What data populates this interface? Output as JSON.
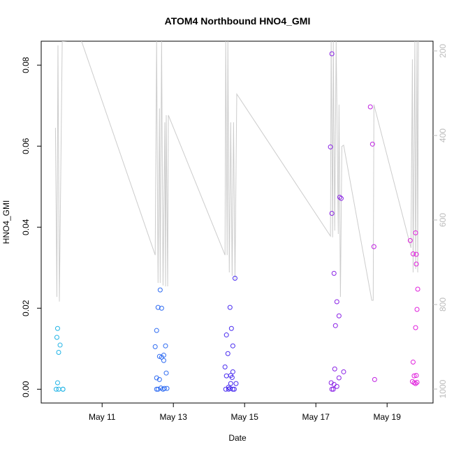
{
  "chart_data": {
    "type": "scatter",
    "title": "ATOM4 Northbound HNO4_GMI",
    "xlabel": "Date",
    "ylabel": "HNO4_GMI",
    "xlim": [
      9.29,
      20.29
    ],
    "xticks": [
      {
        "value": 11,
        "label": "May 11"
      },
      {
        "value": 13,
        "label": "May 13"
      },
      {
        "value": 15,
        "label": "May 15"
      },
      {
        "value": 17,
        "label": "May 17"
      },
      {
        "value": 19,
        "label": "May 19"
      }
    ],
    "ylim": [
      -0.0034,
      0.0859
    ],
    "yticks": [
      {
        "value": 0,
        "label": "0.00"
      },
      {
        "value": 0.02,
        "label": "0.02"
      },
      {
        "value": 0.04,
        "label": "0.04"
      },
      {
        "value": 0.06,
        "label": "0.06"
      },
      {
        "value": 0.08,
        "label": "0.08"
      }
    ],
    "y2lim": [
      1033,
      177
    ],
    "y2ticks": [
      200,
      400,
      600,
      800,
      1000
    ],
    "y2_color": "#bbbbbb",
    "series": [
      {
        "type": "scatter",
        "color": "#22b4e6",
        "x": [
          9.75,
          9.73,
          9.82,
          9.78,
          9.75,
          9.71,
          9.78,
          9.9,
          9.9
        ],
        "values": [
          0.015,
          0.0128,
          0.0109,
          0.0091,
          0.0016,
          0,
          0,
          0,
          0
        ]
      },
      {
        "type": "scatter",
        "color": "#2f6cf2",
        "x": [
          12.63,
          12.57,
          12.67,
          12.53,
          12.49,
          12.78,
          12.61,
          12.67,
          12.73,
          12.73,
          12.8,
          12.53,
          12.61,
          12.53,
          12.57,
          12.65,
          12.75,
          12.82,
          12.71
        ],
        "values": [
          0.0245,
          0.0202,
          0.02,
          0.0145,
          0.0105,
          0.0107,
          0.0081,
          0.0079,
          0.0084,
          0.0071,
          0.004,
          0.0028,
          0.0024,
          0,
          0,
          0.0003,
          0.0002,
          0.0002,
          0
        ]
      },
      {
        "type": "scatter",
        "color": "#4a2df0",
        "x": [
          14.73,
          14.59,
          14.63,
          14.49,
          14.67,
          14.53,
          14.45,
          14.67,
          14.49,
          14.61,
          14.65,
          14.76,
          14.61,
          14.55,
          14.47,
          14.55,
          14.67,
          14.71,
          14.59
        ],
        "values": [
          0.0274,
          0.0202,
          0.015,
          0.0134,
          0.0107,
          0.0088,
          0.0055,
          0.0043,
          0.0033,
          0.0034,
          0.0029,
          0.0014,
          0.0014,
          0.0005,
          0,
          0,
          0,
          0,
          0.0002
        ]
      },
      {
        "type": "scatter",
        "color": "#8a22e6",
        "x": [
          17.45,
          17.41,
          17.45,
          17.67,
          17.71,
          17.51,
          17.59,
          17.65,
          17.55,
          17.53,
          17.78,
          17.65,
          17.43,
          17.51,
          17.59,
          17.45,
          17.49
        ],
        "values": [
          0.0828,
          0.0598,
          0.0434,
          0.0474,
          0.0471,
          0.0286,
          0.0216,
          0.0181,
          0.0157,
          0.005,
          0.0043,
          0.0028,
          0.0016,
          0.0012,
          0.0007,
          0,
          0
        ]
      },
      {
        "type": "scatter",
        "color": "#c020e2",
        "x": [
          18.53,
          18.59,
          18.63,
          18.65
        ],
        "values": [
          0.0697,
          0.0605,
          0.0352,
          0.0024
        ]
      },
      {
        "type": "scatter",
        "color": "#e020dc",
        "x": [
          19.65,
          19.8,
          19.73,
          19.82,
          19.82,
          19.86,
          19.84,
          19.8,
          19.73,
          19.76,
          19.82,
          19.71,
          19.76,
          19.84,
          19.8
        ],
        "values": [
          0.0367,
          0.0386,
          0.0334,
          0.0333,
          0.0309,
          0.0247,
          0.0197,
          0.0152,
          0.0067,
          0.0033,
          0.0034,
          0.0019,
          0.0016,
          0.0017,
          0.0014
        ]
      },
      {
        "type": "line",
        "axis": "y2",
        "color": "#cccccc",
        "x": [
          9.69,
          9.73,
          9.76,
          9.8,
          9.88,
          10.41,
          12.49,
          12.53,
          12.57,
          12.61,
          12.63,
          12.67,
          12.71,
          12.76,
          12.78,
          12.8,
          12.84,
          12.86,
          14.45,
          14.47,
          14.51,
          14.53,
          14.57,
          14.61,
          14.65,
          14.69,
          14.73,
          14.78,
          17.41,
          17.43,
          17.47,
          17.49,
          17.53,
          17.57,
          17.63,
          17.65,
          17.69,
          17.73,
          17.78,
          18.57,
          18.61,
          18.63,
          19.67,
          19.71,
          19.73,
          19.78,
          19.8,
          19.84,
          19.86,
          19.88
        ],
        "values": [
          382,
          782,
          187,
          793,
          177,
          174,
          683,
          177,
          749,
          336,
          749,
          177,
          755,
          369,
          757,
          352,
          757,
          352,
          683,
          177,
          683,
          177,
          724,
          369,
          732,
          369,
          740,
          302,
          638,
          177,
          641,
          177,
          625,
          177,
          633,
          327,
          782,
          426,
          423,
          790,
          790,
          327,
          666,
          220,
          724,
          177,
          716,
          177,
          724,
          177
        ]
      }
    ]
  }
}
